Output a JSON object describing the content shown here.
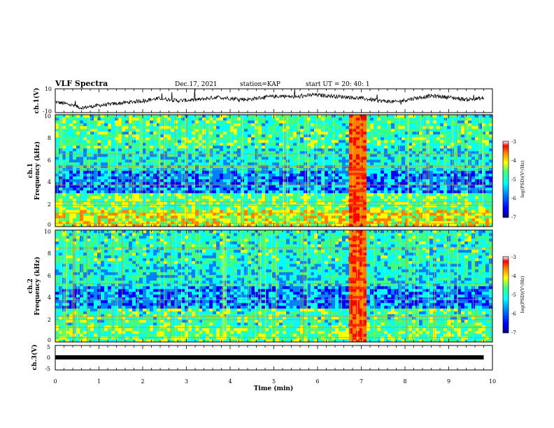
{
  "header": {
    "title": "VLF Spectra",
    "date": "Dec.17, 2021",
    "station": "station=KAP",
    "start": "start  UT =  20: 40: 1"
  },
  "colors": {
    "colormap": [
      "#000080",
      "#0000ff",
      "#0080ff",
      "#00ffff",
      "#40ff80",
      "#ffff00",
      "#ff8000",
      "#ff0000",
      "#e8e8ff"
    ],
    "waveform": "#000000",
    "ch3_bar": "#000000"
  },
  "chart_data": [
    {
      "type": "line",
      "panel": "ch1-waveform",
      "ylabel": "ch.1(V)",
      "ylim": [
        -10,
        10
      ],
      "yticks": [
        "10",
        "-10"
      ],
      "xlim": [
        0,
        10
      ],
      "x": [
        0,
        0.3,
        0.6,
        1.0,
        1.5,
        2.0,
        2.4,
        2.8,
        3.3,
        3.7,
        4.0,
        4.4,
        4.8,
        5.2,
        5.5,
        5.9,
        6.3,
        6.7,
        7.0,
        7.4,
        7.8,
        8.2,
        8.6,
        9.0,
        9.4,
        9.8
      ],
      "y": [
        -1,
        -3,
        -6,
        -4,
        -2,
        0,
        2,
        0,
        1,
        3,
        2,
        1,
        3,
        4,
        3,
        5,
        4,
        3,
        2,
        0,
        -1,
        2,
        4,
        3,
        1,
        2
      ]
    },
    {
      "type": "heatmap",
      "panel": "ch1-spectrogram",
      "ylabel": [
        "ch.1",
        "Frequency (kHz)"
      ],
      "yticks": [
        "0",
        "2",
        "4",
        "6",
        "8",
        "10"
      ],
      "ylim": [
        0,
        10
      ],
      "xlim": [
        0,
        10
      ],
      "colorbar_label": "log(PSD)(V²/Hz)",
      "colorbar_ticks": [
        "-3",
        "-4",
        "-5",
        "-6",
        "-7"
      ],
      "burst_interval_min": [
        6.7,
        7.1
      ],
      "background_bands_khz": [
        [
          0,
          1.5
        ],
        [
          1.5,
          3
        ],
        [
          3,
          5
        ],
        [
          5,
          7
        ],
        [
          7,
          10
        ]
      ],
      "background_levels_log": [
        -4.5,
        -5.0,
        -6.0,
        -5.5,
        -5.2
      ]
    },
    {
      "type": "heatmap",
      "panel": "ch2-spectrogram",
      "ylabel": [
        "ch.2",
        "Frequency (kHz)"
      ],
      "yticks": [
        "0",
        "2",
        "4",
        "6",
        "8",
        "10"
      ],
      "ylim": [
        0,
        10
      ],
      "xlim": [
        0,
        10
      ],
      "colorbar_label": "log(PSD)(V²/Hz)",
      "colorbar_ticks": [
        "-3",
        "-4",
        "-5",
        "-6",
        "-7"
      ],
      "burst_interval_min": [
        6.7,
        7.1
      ],
      "background_bands_khz": [
        [
          0,
          1.5
        ],
        [
          1.5,
          3
        ],
        [
          3,
          5
        ],
        [
          5,
          7
        ],
        [
          7,
          10
        ]
      ],
      "background_levels_log": [
        -5.0,
        -5.2,
        -6.0,
        -5.5,
        -5.3
      ]
    },
    {
      "type": "line",
      "panel": "ch3-waveform",
      "ylabel": "ch.3(V)",
      "ylim": [
        -5,
        5
      ],
      "yticks": [
        "5",
        "0",
        "-5"
      ],
      "xlim": [
        0,
        10
      ],
      "x": [
        0,
        9.8
      ],
      "y": [
        0,
        0
      ]
    }
  ],
  "xaxis": {
    "label": "Time (min)",
    "ticks": [
      "0",
      "1",
      "2",
      "3",
      "4",
      "5",
      "6",
      "7",
      "8",
      "9",
      "10"
    ]
  }
}
